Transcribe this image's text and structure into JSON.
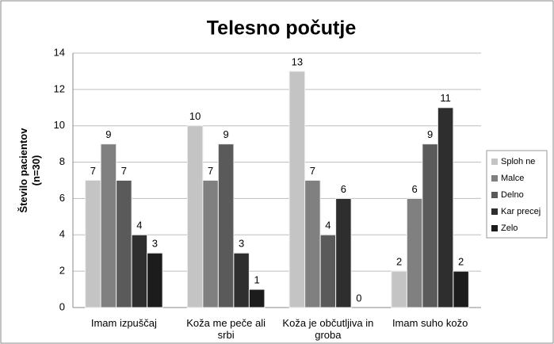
{
  "chart_data": {
    "type": "bar",
    "title": "Telesno počutje",
    "ylabel": "Število pacientov (n=30)",
    "categories": [
      "Imam izpuščaj",
      "Koža me peče ali srbi",
      "Koža je občutljiva in groba",
      "Imam suho kožo"
    ],
    "series": [
      {
        "name": "Sploh ne",
        "color": "#c4c4c4",
        "values": [
          7,
          10,
          13,
          2
        ]
      },
      {
        "name": "Malce",
        "color": "#808080",
        "values": [
          9,
          7,
          7,
          6
        ]
      },
      {
        "name": "Delno",
        "color": "#5a5a5a",
        "values": [
          7,
          9,
          4,
          9
        ]
      },
      {
        "name": "Kar precej",
        "color": "#2e2e2e",
        "values": [
          4,
          3,
          6,
          11
        ]
      },
      {
        "name": "Zelo",
        "color": "#1c1c1c",
        "values": [
          3,
          1,
          0,
          2
        ]
      }
    ],
    "ylim": [
      0,
      14
    ],
    "yticks": [
      0,
      2,
      4,
      6,
      8,
      10,
      12,
      14
    ],
    "grid": true,
    "legend": "right"
  }
}
